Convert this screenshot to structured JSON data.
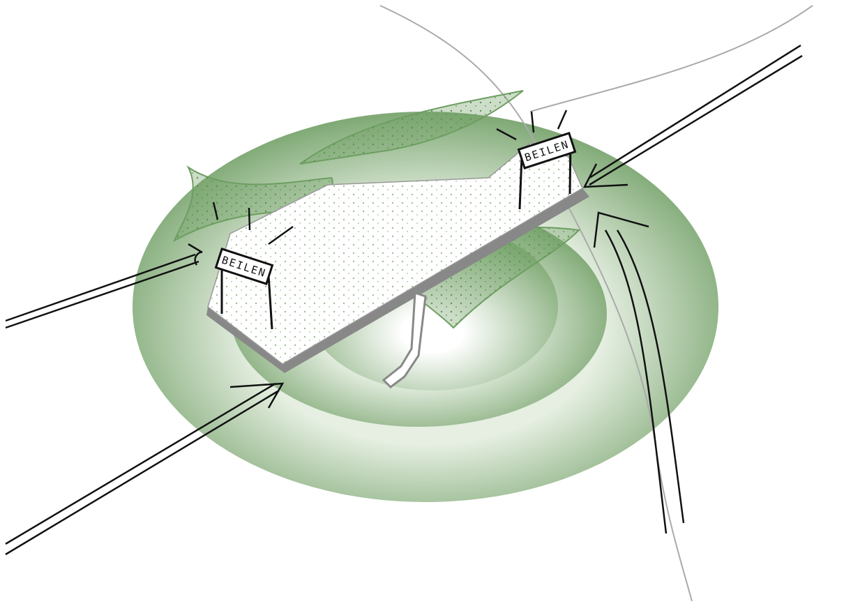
{
  "signs": [
    {
      "label": "BEILEN"
    },
    {
      "label": "BEILEN"
    }
  ]
}
